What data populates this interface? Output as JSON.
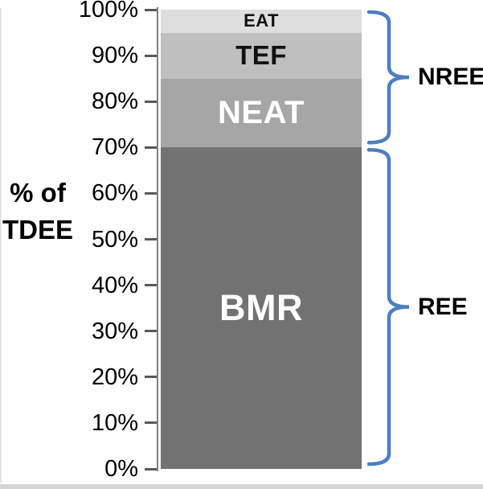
{
  "window": {
    "background": "#FFFFFF",
    "left_edge_color": "#E4E4E4",
    "bottom_strip_color": "#D5D5D5"
  },
  "chart_data": {
    "type": "bar",
    "subtype": "stacked-percentage-column",
    "title": "",
    "xlabel": "",
    "ylabel": "% of TDEE",
    "ylabel_lines": [
      "% of",
      "TDEE"
    ],
    "ylim": [
      0,
      100
    ],
    "grid": false,
    "legend": false,
    "axis_color": "#7F7F7F",
    "tick_color": "#595959",
    "yticks": [
      0,
      10,
      20,
      30,
      40,
      50,
      60,
      70,
      80,
      90,
      100
    ],
    "ytick_labels": [
      "0%",
      "10%",
      "20%",
      "30%",
      "40%",
      "50%",
      "60%",
      "70%",
      "80%",
      "90%",
      "100%"
    ],
    "segments": [
      {
        "name": "BMR",
        "value": 70,
        "from": 0,
        "to": 70,
        "color": "#727272",
        "label_color": "#FFFFFF"
      },
      {
        "name": "NEAT",
        "value": 15,
        "from": 70,
        "to": 85,
        "color": "#A6A6A6",
        "label_color": "#FFFFFF"
      },
      {
        "name": "TEF",
        "value": 10,
        "from": 85,
        "to": 95,
        "color": "#BFBFBF",
        "label_color": "#111111"
      },
      {
        "name": "EAT",
        "value": 5,
        "from": 95,
        "to": 100,
        "color": "#DEDEDE",
        "label_color": "#111111"
      }
    ],
    "brace_color": "#4D7EBF",
    "braces": [
      {
        "label": "NREE",
        "from": 70,
        "to": 100
      },
      {
        "label": "REE",
        "from": 0,
        "to": 70
      }
    ]
  }
}
